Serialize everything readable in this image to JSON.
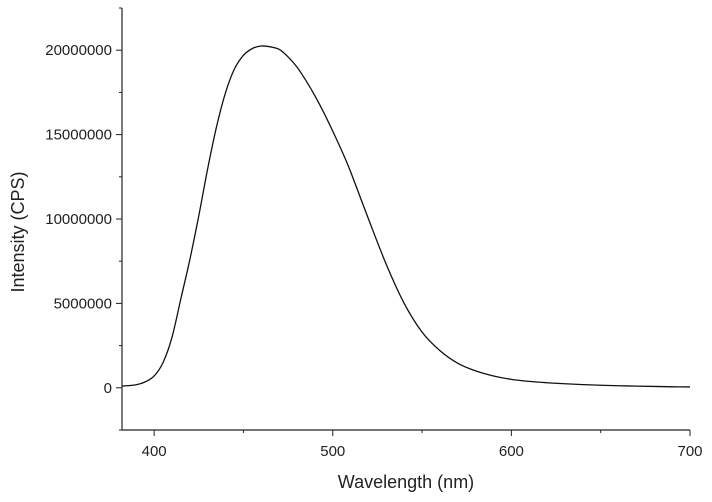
{
  "chart_data": {
    "type": "line",
    "title": "",
    "xlabel": "Wavelength (nm)",
    "ylabel": "Intensity (CPS)",
    "xlim": [
      382,
      700
    ],
    "ylim": [
      -2500000,
      22500000
    ],
    "x_ticks": [
      400,
      500,
      600,
      700
    ],
    "x_tick_labels": [
      "400",
      "500",
      "600",
      "700"
    ],
    "y_ticks": [
      0,
      5000000,
      10000000,
      15000000,
      20000000
    ],
    "y_tick_labels": [
      "0",
      "5000000",
      "10000000",
      "15000000",
      "20000000"
    ],
    "grid": false,
    "legend": "none",
    "line_color": "#111111",
    "series": [
      {
        "x": [
          382,
          390,
          395,
          400,
          405,
          410,
          415,
          420,
          425,
          430,
          435,
          440,
          445,
          450,
          455,
          460,
          465,
          470,
          475,
          480,
          485,
          490,
          495,
          500,
          505,
          510,
          520,
          530,
          540,
          550,
          560,
          570,
          580,
          590,
          600,
          610,
          620,
          630,
          640,
          650,
          660,
          670,
          680,
          690,
          700
        ],
        "y": [
          100000,
          180000,
          350000,
          700000,
          1500000,
          3000000,
          5300000,
          7600000,
          10200000,
          13000000,
          15500000,
          17500000,
          18900000,
          19700000,
          20100000,
          20250000,
          20200000,
          20050000,
          19600000,
          19000000,
          18200000,
          17300000,
          16300000,
          15200000,
          14050000,
          12800000,
          10000000,
          7300000,
          5000000,
          3300000,
          2200000,
          1450000,
          1000000,
          700000,
          500000,
          380000,
          300000,
          240000,
          190000,
          150000,
          120000,
          100000,
          80000,
          60000,
          50000
        ]
      }
    ]
  }
}
